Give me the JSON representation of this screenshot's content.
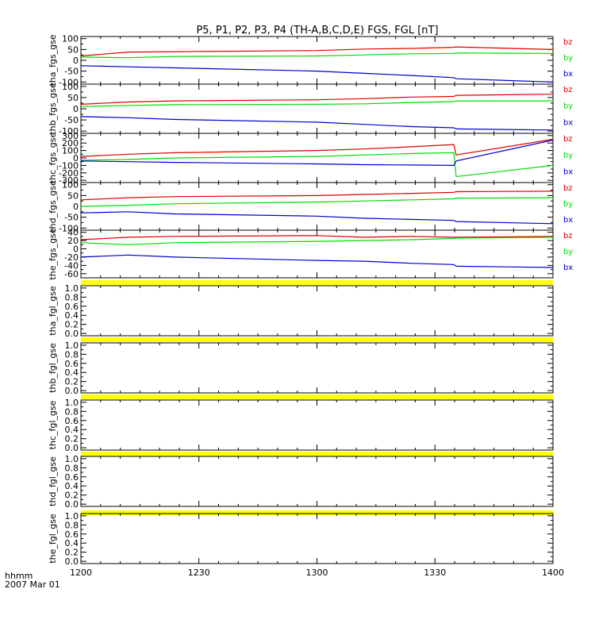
{
  "title": "P5, P1, P2, P3, P4 (TH-A,B,C,D,E) FGS, FGL [nT]",
  "footer": {
    "label1": "hhmm",
    "label2": "2007 Mar 01"
  },
  "colors": {
    "bx": "#0000cc",
    "by": "#00dd00",
    "bz": "#dd0000",
    "flag": "#ffff00",
    "axis": "#000000"
  },
  "chart_data": [
    {
      "type": "line",
      "ylabel": "tha_fgs_gse",
      "x": [
        1200,
        1220,
        1240,
        1300,
        1320,
        1340,
        1358,
        1359,
        1400
      ],
      "ylim": [
        -110,
        110
      ],
      "yticks": [
        100,
        50,
        0,
        -50,
        -100
      ],
      "xlim": [
        1200,
        1400
      ],
      "xticks": [
        "1200",
        "1230",
        "1300",
        "1330",
        "1400"
      ],
      "series": [
        {
          "name": "bz",
          "values": [
            20,
            38,
            40,
            45,
            52,
            55,
            60,
            62,
            50
          ]
        },
        {
          "name": "by",
          "values": [
            15,
            12,
            18,
            20,
            25,
            30,
            32,
            34,
            32
          ]
        },
        {
          "name": "bx",
          "values": [
            -25,
            -30,
            -35,
            -50,
            -60,
            -70,
            -80,
            -85,
            -100
          ]
        }
      ]
    },
    {
      "type": "line",
      "ylabel": "thb_fgs_gse",
      "x": [
        1200,
        1220,
        1240,
        1300,
        1320,
        1340,
        1358,
        1359,
        1400
      ],
      "ylim": [
        -110,
        110
      ],
      "yticks": [
        100,
        50,
        0,
        -50,
        -100
      ],
      "xlim": [
        1200,
        1400
      ],
      "xticks": [
        "1200",
        "1230",
        "1300",
        "1330",
        "1400"
      ],
      "series": [
        {
          "name": "bz",
          "values": [
            20,
            30,
            35,
            40,
            45,
            52,
            55,
            60,
            65
          ]
        },
        {
          "name": "by",
          "values": [
            10,
            15,
            18,
            20,
            22,
            28,
            32,
            35,
            35
          ]
        },
        {
          "name": "bx",
          "values": [
            -35,
            -40,
            -48,
            -60,
            -70,
            -80,
            -85,
            -90,
            -95
          ]
        }
      ]
    },
    {
      "type": "line",
      "ylabel": "thc_fgs_gse",
      "x": [
        1200,
        1220,
        1240,
        1300,
        1320,
        1340,
        1358,
        1359,
        1400
      ],
      "ylim": [
        -330,
        330
      ],
      "yticks": [
        300,
        200,
        100,
        0,
        -100,
        -200,
        -300
      ],
      "xlim": [
        1200,
        1400
      ],
      "xticks": [
        "1200",
        "1230",
        "1300",
        "1330",
        "1400"
      ],
      "series": [
        {
          "name": "bz",
          "values": [
            20,
            50,
            70,
            100,
            120,
            150,
            180,
            40,
            250
          ]
        },
        {
          "name": "by",
          "values": [
            -30,
            -20,
            0,
            20,
            40,
            60,
            70,
            -250,
            -100
          ]
        },
        {
          "name": "bx",
          "values": [
            -40,
            -50,
            -60,
            -80,
            -90,
            -95,
            -100,
            -40,
            240
          ]
        }
      ]
    },
    {
      "type": "line",
      "ylabel": "thd_fgs_gse",
      "x": [
        1200,
        1220,
        1240,
        1300,
        1320,
        1340,
        1358,
        1359,
        1400
      ],
      "ylim": [
        -110,
        110
      ],
      "yticks": [
        100,
        50,
        0,
        -50,
        -100
      ],
      "xlim": [
        1200,
        1400
      ],
      "xticks": [
        "1200",
        "1230",
        "1300",
        "1330",
        "1400"
      ],
      "series": [
        {
          "name": "bz",
          "values": [
            30,
            40,
            45,
            50,
            55,
            60,
            65,
            68,
            70
          ]
        },
        {
          "name": "by",
          "values": [
            0,
            5,
            12,
            20,
            25,
            30,
            35,
            38,
            40
          ]
        },
        {
          "name": "bx",
          "values": [
            -30,
            -25,
            -35,
            -45,
            -55,
            -60,
            -65,
            -70,
            -80
          ]
        }
      ]
    },
    {
      "type": "line",
      "ylabel": "the_fgs_gse",
      "x": [
        1200,
        1220,
        1240,
        1300,
        1320,
        1340,
        1358,
        1359,
        1400
      ],
      "ylim": [
        -70,
        45
      ],
      "yticks": [
        40,
        20,
        0,
        -20,
        -40,
        -60
      ],
      "xlim": [
        1200,
        1400
      ],
      "xticks": [
        "1200",
        "1230",
        "1300",
        "1330",
        "1400"
      ],
      "series": [
        {
          "name": "bz",
          "values": [
            22,
            28,
            30,
            32,
            28,
            30,
            28,
            28,
            30
          ]
        },
        {
          "name": "by",
          "values": [
            15,
            10,
            15,
            18,
            20,
            22,
            25,
            26,
            28
          ]
        },
        {
          "name": "bx",
          "values": [
            -20,
            -15,
            -20,
            -28,
            -30,
            -35,
            -38,
            -42,
            -45
          ]
        }
      ]
    },
    {
      "type": "line",
      "ylabel": "tha_fgl_gse",
      "ylim": [
        -0.05,
        1.05
      ],
      "yticks": [
        "1.0",
        "0.8",
        "0.6",
        "0.4",
        "0.2",
        "0.0"
      ],
      "xlim": [
        1200,
        1400
      ],
      "xticks": [
        "1200",
        "1230",
        "1300",
        "1330",
        "1400"
      ],
      "series": []
    },
    {
      "type": "line",
      "ylabel": "thb_fgl_gse",
      "ylim": [
        -0.05,
        1.05
      ],
      "yticks": [
        "1.0",
        "0.8",
        "0.6",
        "0.4",
        "0.2",
        "0.0"
      ],
      "xlim": [
        1200,
        1400
      ],
      "xticks": [
        "1200",
        "1230",
        "1300",
        "1330",
        "1400"
      ],
      "series": []
    },
    {
      "type": "line",
      "ylabel": "thc_fgl_gse",
      "ylim": [
        -0.05,
        1.05
      ],
      "yticks": [
        "1.0",
        "0.8",
        "0.6",
        "0.4",
        "0.2",
        "0.0"
      ],
      "xlim": [
        1200,
        1400
      ],
      "xticks": [
        "1200",
        "1230",
        "1300",
        "1330",
        "1400"
      ],
      "series": []
    },
    {
      "type": "line",
      "ylabel": "thd_fgl_gse",
      "ylim": [
        -0.05,
        1.05
      ],
      "yticks": [
        "1.0",
        "0.8",
        "0.6",
        "0.4",
        "0.2",
        "0.0"
      ],
      "xlim": [
        1200,
        1400
      ],
      "xticks": [
        "1200",
        "1230",
        "1300",
        "1330",
        "1400"
      ],
      "series": []
    },
    {
      "type": "line",
      "ylabel": "the_fgl_gse",
      "ylim": [
        -0.05,
        1.05
      ],
      "yticks": [
        "1.0",
        "0.8",
        "0.6",
        "0.4",
        "0.2",
        "0.0"
      ],
      "xlim": [
        1200,
        1400
      ],
      "xticks": [
        "1200",
        "1230",
        "1300",
        "1330",
        "1400"
      ],
      "series": []
    }
  ]
}
